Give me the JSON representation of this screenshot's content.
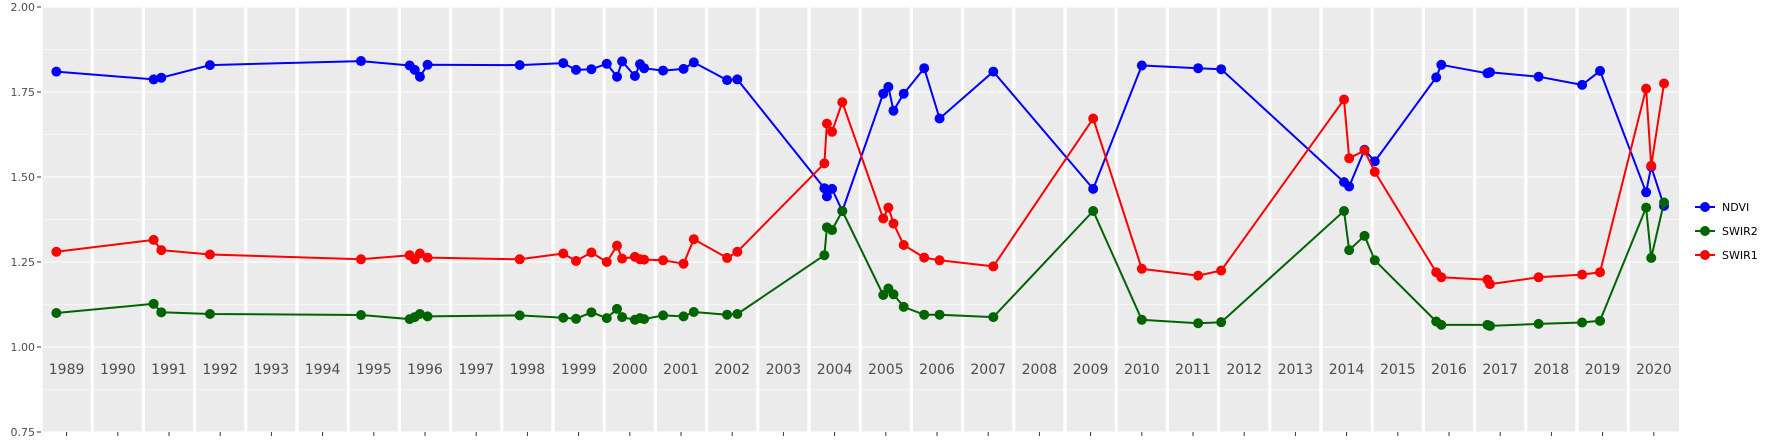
{
  "chart_data": {
    "type": "line",
    "title": "",
    "xlabel": "",
    "ylabel": "",
    "ylim": [
      0.75,
      2.0
    ],
    "y_ticks": [
      "0.75",
      "1.00",
      "1.25",
      "1.50",
      "1.75",
      "2.00"
    ],
    "grid": true,
    "legend_position": "right",
    "year_labels": [
      "1989",
      "1990",
      "1991",
      "1992",
      "1993",
      "1994",
      "1995",
      "1996",
      "1997",
      "1998",
      "1999",
      "2000",
      "2001",
      "2002",
      "2003",
      "2004",
      "2005",
      "2006",
      "2007",
      "2008",
      "2009",
      "2010",
      "2011",
      "2012",
      "2013",
      "2014",
      "2015",
      "2016",
      "2017",
      "2018",
      "2019",
      "2020"
    ],
    "x": [
      1989.3,
      1991.2,
      1991.35,
      1992.3,
      1995.25,
      1996.2,
      1996.3,
      1996.4,
      1996.55,
      1998.35,
      1999.2,
      1999.45,
      1999.75,
      2000.05,
      2000.25,
      2000.35,
      2000.6,
      2000.7,
      2000.78,
      2001.15,
      2001.55,
      2001.75,
      2002.4,
      2002.6,
      2004.3,
      2004.35,
      2004.45,
      2004.65,
      2005.45,
      2005.55,
      2005.65,
      2005.85,
      2006.25,
      2006.55,
      2007.6,
      2009.55,
      2010.5,
      2011.6,
      2012.05,
      2014.45,
      2014.55,
      2014.85,
      2015.05,
      2016.25,
      2016.35,
      2017.25,
      2017.3,
      2018.25,
      2019.1,
      2019.45,
      2020.35,
      2020.45,
      2020.7
    ],
    "series": [
      {
        "name": "NDVI",
        "color": "#0000ff",
        "values": [
          1.81,
          1.787,
          1.792,
          1.829,
          1.841,
          1.828,
          1.815,
          1.795,
          1.83,
          1.829,
          1.835,
          1.815,
          1.817,
          1.833,
          1.795,
          1.84,
          1.797,
          1.832,
          1.82,
          1.813,
          1.818,
          1.837,
          1.785,
          1.787,
          1.467,
          1.443,
          1.465,
          1.4,
          1.745,
          1.765,
          1.695,
          1.745,
          1.82,
          1.672,
          1.81,
          1.465,
          1.828,
          1.82,
          1.817,
          1.485,
          1.472,
          1.58,
          1.546,
          1.793,
          1.83,
          1.805,
          1.808,
          1.795,
          1.771,
          1.812,
          1.455,
          1.53,
          1.415
        ]
      },
      {
        "name": "SWIR2",
        "color": "#006400",
        "values": [
          1.1,
          1.127,
          1.102,
          1.097,
          1.094,
          1.082,
          1.088,
          1.097,
          1.09,
          1.093,
          1.086,
          1.083,
          1.102,
          1.085,
          1.112,
          1.088,
          1.08,
          1.085,
          1.082,
          1.093,
          1.09,
          1.103,
          1.095,
          1.097,
          1.27,
          1.352,
          1.344,
          1.4,
          1.153,
          1.172,
          1.155,
          1.118,
          1.095,
          1.095,
          1.088,
          1.4,
          1.08,
          1.07,
          1.073,
          1.4,
          1.285,
          1.327,
          1.255,
          1.075,
          1.065,
          1.065,
          1.062,
          1.068,
          1.072,
          1.077,
          1.41,
          1.262,
          1.425
        ]
      },
      {
        "name": "SWIR1",
        "color": "#ff0000",
        "values": [
          1.28,
          1.315,
          1.285,
          1.272,
          1.258,
          1.27,
          1.258,
          1.275,
          1.263,
          1.258,
          1.275,
          1.253,
          1.278,
          1.25,
          1.298,
          1.26,
          1.265,
          1.258,
          1.257,
          1.255,
          1.245,
          1.317,
          1.262,
          1.28,
          1.54,
          1.657,
          1.633,
          1.72,
          1.378,
          1.41,
          1.363,
          1.3,
          1.263,
          1.255,
          1.237,
          1.672,
          1.23,
          1.21,
          1.225,
          1.728,
          1.555,
          1.578,
          1.515,
          1.22,
          1.205,
          1.198,
          1.185,
          1.205,
          1.213,
          1.22,
          1.76,
          1.533,
          1.775
        ]
      }
    ]
  }
}
